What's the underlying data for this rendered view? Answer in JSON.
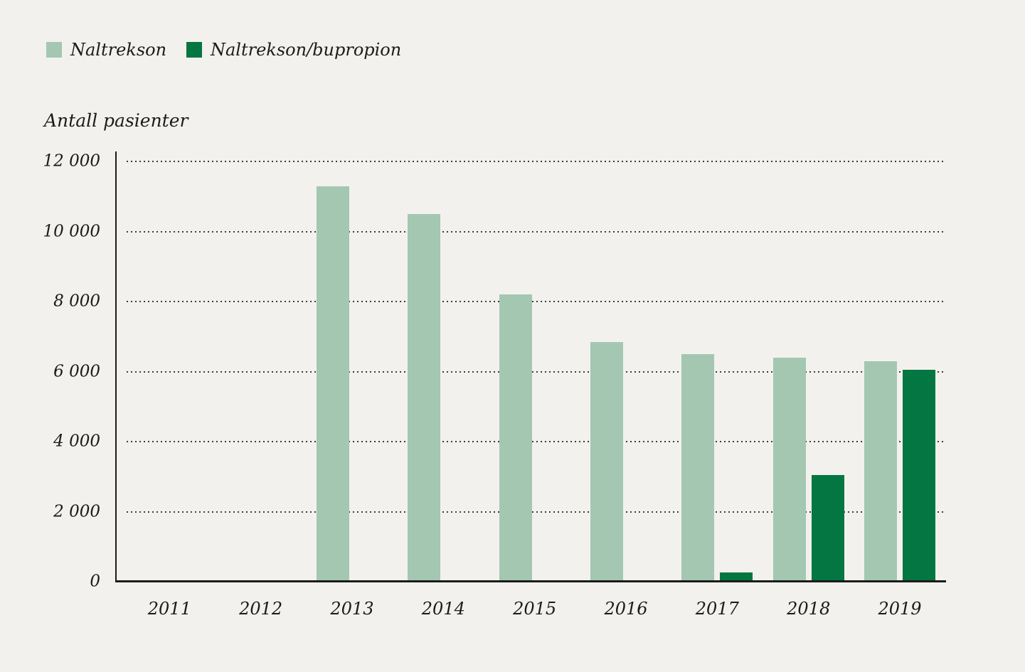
{
  "y_axis_title": "Antall pasienter",
  "legend": {
    "items": [
      {
        "label": "Naltrekson",
        "color": "#a4c7b1"
      },
      {
        "label": "Naltrekson/bupropion",
        "color": "#047641"
      }
    ]
  },
  "chart_data": {
    "type": "bar",
    "title": "",
    "xlabel": "",
    "ylabel": "Antall pasienter",
    "categories": [
      "2011",
      "2012",
      "2013",
      "2014",
      "2015",
      "2016",
      "2017",
      "2018",
      "2019"
    ],
    "series": [
      {
        "name": "Naltrekson",
        "color": "#a4c7b1",
        "values": [
          30,
          40,
          11300,
          10500,
          8200,
          6850,
          6500,
          6400,
          6300
        ]
      },
      {
        "name": "Naltrekson/bupropion",
        "color": "#047641",
        "values": [
          null,
          null,
          null,
          null,
          null,
          null,
          260,
          3050,
          6060
        ]
      }
    ],
    "ylim": [
      0,
      12000
    ],
    "ytick_step": 2000,
    "ytick_labels": [
      "0",
      "2 000",
      "4 000",
      "6 000",
      "8 000",
      "10 000",
      "12 000"
    ],
    "grid": "horizontal-dotted",
    "legend_position": "top-left",
    "background_color": "#f2f1ee",
    "grid_color": "#3b3b3b",
    "text_color": "#1b1b1b"
  }
}
